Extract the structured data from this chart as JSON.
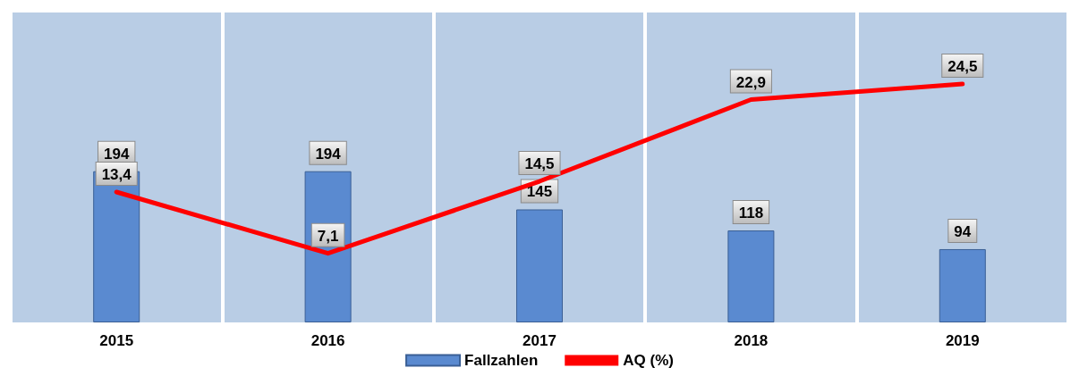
{
  "chart_data": {
    "type": "bar",
    "categories": [
      "2015",
      "2016",
      "2017",
      "2018",
      "2019"
    ],
    "series": [
      {
        "name": "Fallzahlen",
        "color": "#5a8ad0",
        "values": [
          194,
          194,
          145,
          118,
          94
        ],
        "value_labels": [
          "194",
          "194",
          "145",
          "118",
          "94"
        ]
      },
      {
        "name": "AQ (%)",
        "type": "line",
        "axis": "y2",
        "color": "#ff0000",
        "values": [
          13.4,
          7.1,
          14.5,
          22.9,
          24.5
        ],
        "value_labels": [
          "13,4",
          "7,1",
          "14,5",
          "22,9",
          "24,5"
        ]
      }
    ],
    "grid": "x",
    "legend": "bottom",
    "tick_labels": "x",
    "marker": "none",
    "line_style": "solid"
  }
}
